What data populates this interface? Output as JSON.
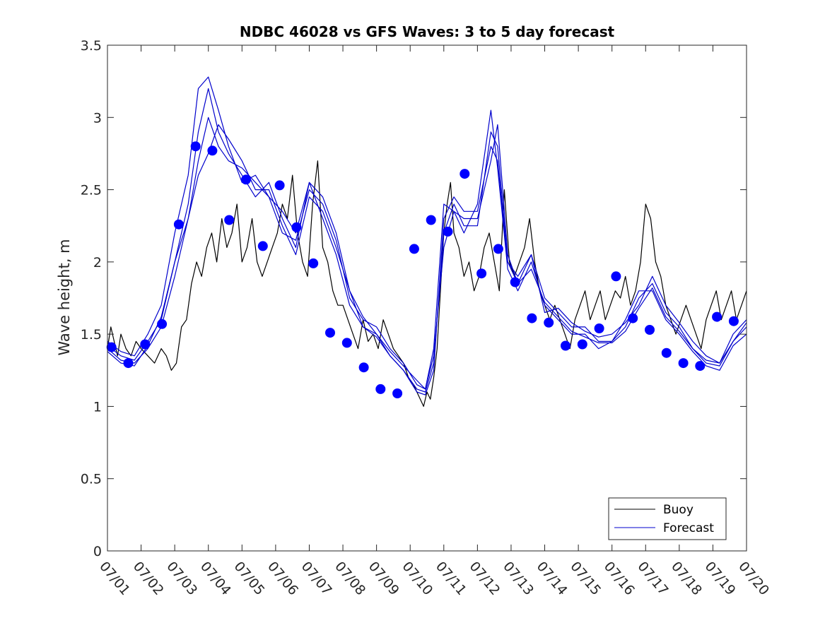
{
  "chart_data": {
    "type": "line",
    "title": "NDBC 46028 vs GFS Waves: 3 to 5 day forecast",
    "xlabel": "",
    "ylabel": "Wave height, m",
    "xlim": [
      "07/01",
      "07/20"
    ],
    "ylim": [
      0,
      3.5
    ],
    "y_ticks": [
      "0",
      "0.5",
      "1",
      "1.5",
      "2",
      "2.5",
      "3",
      "3.5"
    ],
    "x_ticks": [
      "07/01",
      "07/02",
      "07/03",
      "07/04",
      "07/05",
      "07/06",
      "07/07",
      "07/08",
      "07/09",
      "07/10",
      "07/11",
      "07/12",
      "07/13",
      "07/14",
      "07/15",
      "07/16",
      "07/17",
      "07/18",
      "07/19",
      "07/20"
    ],
    "grid": false,
    "legend_position": "bottom-right",
    "legend": [
      {
        "label": "Buoy",
        "color": "#000000"
      },
      {
        "label": "Forecast",
        "color": "#0000cc"
      }
    ],
    "series": [
      {
        "name": "Buoy",
        "color": "#000000",
        "day": [
          0.0,
          0.1,
          0.2,
          0.3,
          0.4,
          0.55,
          0.7,
          0.85,
          1.0,
          1.2,
          1.4,
          1.6,
          1.75,
          1.9,
          2.05,
          2.2,
          2.35,
          2.5,
          2.65,
          2.8,
          2.95,
          3.1,
          3.25,
          3.4,
          3.55,
          3.7,
          3.85,
          4.0,
          4.15,
          4.3,
          4.45,
          4.6,
          4.75,
          4.9,
          5.05,
          5.2,
          5.35,
          5.5,
          5.65,
          5.8,
          5.95,
          6.1,
          6.25,
          6.4,
          6.55,
          6.7,
          6.85,
          7.0,
          7.15,
          7.3,
          7.45,
          7.6,
          7.75,
          7.9,
          8.05,
          8.2,
          8.35,
          8.5,
          8.65,
          8.8,
          8.95,
          9.1,
          9.2,
          9.3,
          9.4,
          9.5,
          9.6,
          9.7,
          9.8,
          9.9,
          10.0,
          10.1,
          10.2,
          10.3,
          10.45,
          10.6,
          10.75,
          10.9,
          11.05,
          11.2,
          11.35,
          11.5,
          11.65,
          11.8,
          11.95,
          12.1,
          12.25,
          12.4,
          12.55,
          12.7,
          12.85,
          13.0,
          13.15,
          13.3,
          13.45,
          13.6,
          13.75,
          13.9,
          14.05,
          14.2,
          14.35,
          14.5,
          14.65,
          14.8,
          14.95,
          15.1,
          15.25,
          15.4,
          15.55,
          15.7,
          15.85,
          16.0,
          16.15,
          16.3,
          16.45,
          16.6,
          16.75,
          16.9,
          17.05,
          17.2,
          17.35,
          17.5,
          17.65,
          17.8,
          17.95,
          18.1,
          18.25,
          18.4,
          18.55,
          18.7,
          18.85,
          19.0
        ],
        "values": [
          1.4,
          1.55,
          1.45,
          1.35,
          1.5,
          1.4,
          1.35,
          1.45,
          1.4,
          1.35,
          1.3,
          1.4,
          1.35,
          1.25,
          1.3,
          1.55,
          1.6,
          1.85,
          2.0,
          1.9,
          2.1,
          2.2,
          2.0,
          2.3,
          2.1,
          2.2,
          2.4,
          2.0,
          2.1,
          2.3,
          2.0,
          1.9,
          2.0,
          2.1,
          2.2,
          2.4,
          2.3,
          2.6,
          2.2,
          2.0,
          1.9,
          2.4,
          2.7,
          2.1,
          2.0,
          1.8,
          1.7,
          1.7,
          1.6,
          1.5,
          1.4,
          1.6,
          1.45,
          1.5,
          1.4,
          1.6,
          1.5,
          1.4,
          1.35,
          1.3,
          1.2,
          1.15,
          1.1,
          1.05,
          1.0,
          1.1,
          1.05,
          1.2,
          1.4,
          1.8,
          2.2,
          2.4,
          2.55,
          2.2,
          2.1,
          1.9,
          2.0,
          1.8,
          1.9,
          2.1,
          2.2,
          2.0,
          1.8,
          2.5,
          2.0,
          1.9,
          2.0,
          2.1,
          2.3,
          2.0,
          1.8,
          1.7,
          1.6,
          1.7,
          1.6,
          1.5,
          1.4,
          1.6,
          1.7,
          1.8,
          1.6,
          1.7,
          1.8,
          1.6,
          1.7,
          1.8,
          1.75,
          1.9,
          1.7,
          1.8,
          2.0,
          2.4,
          2.3,
          2.0,
          1.9,
          1.7,
          1.6,
          1.5,
          1.6,
          1.7,
          1.6,
          1.5,
          1.4,
          1.6,
          1.7,
          1.8,
          1.6,
          1.7,
          1.8,
          1.6,
          1.7,
          1.8
        ]
      },
      {
        "name": "Forecast",
        "color": "#0000cc",
        "day": [
          0.0,
          0.4,
          0.8,
          1.2,
          1.6,
          2.0,
          2.4,
          2.7,
          3.0,
          3.3,
          3.6,
          4.0,
          4.4,
          4.8,
          5.2,
          5.6,
          6.0,
          6.4,
          6.8,
          7.2,
          7.6,
          8.0,
          8.4,
          8.8,
          9.2,
          9.45,
          9.7,
          10.0,
          10.3,
          10.6,
          11.0,
          11.4,
          11.6,
          11.9,
          12.2,
          12.6,
          13.0,
          13.4,
          13.8,
          14.2,
          14.6,
          15.0,
          15.4,
          15.8,
          16.2,
          16.6,
          17.0,
          17.4,
          17.8,
          18.2,
          18.6,
          19.0
        ],
        "values": [
          1.42,
          1.35,
          1.32,
          1.45,
          1.6,
          2.0,
          2.4,
          2.9,
          3.2,
          2.9,
          2.75,
          2.6,
          2.45,
          2.55,
          2.3,
          2.1,
          2.55,
          2.3,
          2.05,
          1.7,
          1.55,
          1.5,
          1.35,
          1.25,
          1.12,
          1.1,
          1.3,
          2.2,
          2.4,
          2.25,
          2.25,
          2.9,
          2.8,
          2.0,
          1.9,
          2.05,
          1.75,
          1.65,
          1.55,
          1.55,
          1.45,
          1.45,
          1.55,
          1.75,
          1.85,
          1.65,
          1.55,
          1.4,
          1.32,
          1.3,
          1.45,
          1.55
        ]
      },
      {
        "name": "Forecast",
        "color": "#0000cc",
        "day": [
          0.0,
          0.4,
          0.8,
          1.2,
          1.6,
          2.0,
          2.4,
          2.7,
          3.0,
          3.3,
          3.6,
          4.0,
          4.4,
          4.8,
          5.2,
          5.6,
          6.0,
          6.4,
          6.8,
          7.2,
          7.6,
          8.0,
          8.4,
          8.8,
          9.2,
          9.45,
          9.7,
          10.0,
          10.3,
          10.6,
          11.0,
          11.4,
          11.6,
          11.9,
          12.2,
          12.6,
          13.0,
          13.4,
          13.8,
          14.2,
          14.6,
          15.0,
          15.4,
          15.8,
          16.2,
          16.6,
          17.0,
          17.4,
          17.8,
          18.2,
          18.6,
          19.0
        ],
        "values": [
          1.45,
          1.38,
          1.35,
          1.5,
          1.7,
          2.2,
          2.6,
          3.2,
          3.28,
          3.05,
          2.8,
          2.55,
          2.6,
          2.45,
          2.2,
          2.15,
          2.5,
          2.4,
          2.15,
          1.75,
          1.6,
          1.55,
          1.4,
          1.3,
          1.15,
          1.12,
          1.4,
          2.4,
          2.35,
          2.2,
          2.4,
          3.05,
          2.65,
          1.95,
          1.8,
          2.0,
          1.7,
          1.6,
          1.5,
          1.5,
          1.4,
          1.45,
          1.6,
          1.8,
          1.8,
          1.6,
          1.5,
          1.38,
          1.28,
          1.25,
          1.42,
          1.5
        ]
      },
      {
        "name": "Forecast",
        "color": "#0000cc",
        "day": [
          0.0,
          0.4,
          0.8,
          1.2,
          1.6,
          2.0,
          2.4,
          2.7,
          3.0,
          3.3,
          3.6,
          4.0,
          4.4,
          4.8,
          5.2,
          5.6,
          6.0,
          6.4,
          6.8,
          7.2,
          7.6,
          8.0,
          8.4,
          8.8,
          9.2,
          9.45,
          9.7,
          10.0,
          10.3,
          10.6,
          11.0,
          11.4,
          11.6,
          11.9,
          12.2,
          12.6,
          13.0,
          13.4,
          13.8,
          14.2,
          14.6,
          15.0,
          15.4,
          15.8,
          16.2,
          16.6,
          17.0,
          17.4,
          17.8,
          18.2,
          18.6,
          19.0
        ],
        "values": [
          1.4,
          1.32,
          1.3,
          1.4,
          1.55,
          1.9,
          2.3,
          2.6,
          2.75,
          2.95,
          2.85,
          2.7,
          2.5,
          2.5,
          2.25,
          2.05,
          2.45,
          2.35,
          2.1,
          1.8,
          1.62,
          1.5,
          1.38,
          1.28,
          1.18,
          1.12,
          1.35,
          2.1,
          2.35,
          2.3,
          2.3,
          2.7,
          2.95,
          2.05,
          1.85,
          2.05,
          1.65,
          1.68,
          1.58,
          1.52,
          1.48,
          1.5,
          1.58,
          1.7,
          1.9,
          1.7,
          1.58,
          1.45,
          1.35,
          1.3,
          1.5,
          1.6
        ]
      },
      {
        "name": "Forecast",
        "color": "#0000cc",
        "day": [
          0.0,
          0.4,
          0.8,
          1.2,
          1.6,
          2.0,
          2.4,
          2.7,
          3.0,
          3.3,
          3.6,
          4.0,
          4.4,
          4.8,
          5.2,
          5.6,
          6.0,
          6.4,
          6.8,
          7.2,
          7.6,
          8.0,
          8.4,
          8.8,
          9.2,
          9.45,
          9.7,
          10.0,
          10.3,
          10.6,
          11.0,
          11.4,
          11.6,
          11.9,
          12.2,
          12.6,
          13.0,
          13.4,
          13.8,
          14.2,
          14.6,
          15.0,
          15.4,
          15.8,
          16.2,
          16.6,
          17.0,
          17.4,
          17.8,
          18.2,
          18.6,
          19.0
        ],
        "values": [
          1.38,
          1.3,
          1.28,
          1.42,
          1.62,
          2.0,
          2.3,
          2.7,
          3.0,
          2.8,
          2.7,
          2.65,
          2.55,
          2.45,
          2.35,
          2.2,
          2.55,
          2.45,
          2.2,
          1.8,
          1.55,
          1.48,
          1.35,
          1.25,
          1.1,
          1.08,
          1.25,
          2.3,
          2.45,
          2.35,
          2.35,
          2.8,
          2.7,
          2.0,
          1.85,
          1.95,
          1.72,
          1.62,
          1.52,
          1.48,
          1.44,
          1.44,
          1.52,
          1.68,
          1.82,
          1.62,
          1.52,
          1.4,
          1.3,
          1.28,
          1.45,
          1.58
        ]
      }
    ],
    "forecast_markers": {
      "name": "Forecast",
      "day": [
        0.12,
        0.62,
        1.12,
        1.62,
        2.12,
        2.62,
        3.12,
        3.62,
        4.12,
        4.62,
        5.12,
        5.62,
        6.12,
        6.62,
        7.12,
        7.62,
        8.12,
        8.62,
        9.12,
        9.62,
        10.12,
        10.62,
        11.12,
        11.62,
        12.12,
        12.62,
        13.12,
        13.62,
        14.12,
        14.62,
        15.12,
        15.62,
        16.12,
        16.62,
        17.12,
        17.62,
        18.12,
        18.62
      ],
      "values": [
        1.41,
        1.3,
        1.43,
        1.57,
        2.26,
        2.8,
        2.77,
        2.29,
        2.57,
        2.11,
        2.53,
        2.24,
        1.99,
        1.51,
        1.44,
        1.27,
        1.12,
        1.09,
        2.09,
        2.29,
        2.21,
        2.61,
        1.92,
        2.09,
        1.86,
        1.61,
        1.58,
        1.42,
        1.43,
        1.54,
        1.9,
        1.61,
        1.53,
        1.37,
        1.3,
        1.28,
        1.62,
        1.59
      ]
    }
  }
}
